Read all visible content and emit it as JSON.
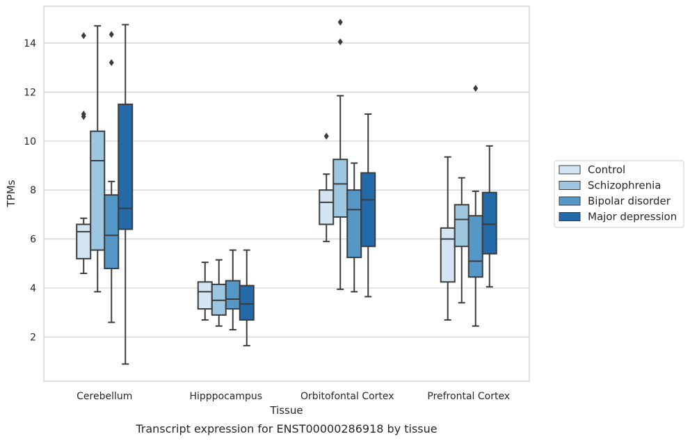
{
  "caption": "Transcript expression for ENST00000286918 by tissue",
  "chart_data": {
    "type": "box",
    "title": "",
    "xlabel": "Tissue",
    "ylabel": "TPMs",
    "ylim": [
      0.2,
      15.5
    ],
    "yticks": [
      2,
      4,
      6,
      8,
      10,
      12,
      14
    ],
    "grid": "horizontal",
    "legend_position": "right",
    "categories": [
      "Cerebellum",
      "Hipppocampus",
      "Orbitofontal Cortex",
      "Prefrontal Cortex"
    ],
    "series": [
      {
        "name": "Control",
        "color": "#d3e4f3",
        "boxes": [
          {
            "whisker_low": 4.6,
            "q1": 5.2,
            "median": 6.3,
            "q3": 6.6,
            "whisker_high": 6.85,
            "outliers": [
              11.0,
              11.1,
              14.3
            ]
          },
          {
            "whisker_low": 2.7,
            "q1": 3.15,
            "median": 3.85,
            "q3": 4.25,
            "whisker_high": 5.05,
            "outliers": []
          },
          {
            "whisker_low": 5.9,
            "q1": 6.6,
            "median": 7.5,
            "q3": 8.0,
            "whisker_high": 8.65,
            "outliers": [
              10.2
            ]
          },
          {
            "whisker_low": 2.7,
            "q1": 4.25,
            "median": 6.0,
            "q3": 6.45,
            "whisker_high": 9.35,
            "outliers": []
          }
        ]
      },
      {
        "name": "Schizophrenia",
        "color": "#9dc7e0",
        "boxes": [
          {
            "whisker_low": 3.85,
            "q1": 5.55,
            "median": 9.2,
            "q3": 10.4,
            "whisker_high": 14.7,
            "outliers": []
          },
          {
            "whisker_low": 2.45,
            "q1": 2.9,
            "median": 3.5,
            "q3": 4.15,
            "whisker_high": 5.15,
            "outliers": []
          },
          {
            "whisker_low": 3.95,
            "q1": 6.9,
            "median": 8.25,
            "q3": 9.25,
            "whisker_high": 11.85,
            "outliers": [
              14.05,
              14.85
            ]
          },
          {
            "whisker_low": 3.4,
            "q1": 5.7,
            "median": 6.8,
            "q3": 7.4,
            "whisker_high": 8.5,
            "outliers": []
          }
        ]
      },
      {
        "name": "Bipolar disorder",
        "color": "#5597c7",
        "boxes": [
          {
            "whisker_low": 2.6,
            "q1": 4.8,
            "median": 6.15,
            "q3": 7.8,
            "whisker_high": 8.35,
            "outliers": [
              13.2,
              14.35
            ]
          },
          {
            "whisker_low": 2.3,
            "q1": 3.15,
            "median": 3.55,
            "q3": 4.3,
            "whisker_high": 5.55,
            "outliers": []
          },
          {
            "whisker_low": 3.85,
            "q1": 5.25,
            "median": 7.2,
            "q3": 8.0,
            "whisker_high": 9.1,
            "outliers": []
          },
          {
            "whisker_low": 2.45,
            "q1": 4.45,
            "median": 5.1,
            "q3": 6.95,
            "whisker_high": 7.95,
            "outliers": [
              12.15
            ]
          }
        ]
      },
      {
        "name": "Major depression",
        "color": "#2469a8",
        "boxes": [
          {
            "whisker_low": 0.9,
            "q1": 6.4,
            "median": 7.25,
            "q3": 11.5,
            "whisker_high": 14.75,
            "outliers": []
          },
          {
            "whisker_low": 1.65,
            "q1": 2.7,
            "median": 3.35,
            "q3": 4.1,
            "whisker_high": 5.55,
            "outliers": []
          },
          {
            "whisker_low": 3.65,
            "q1": 5.7,
            "median": 7.6,
            "q3": 8.7,
            "whisker_high": 11.1,
            "outliers": []
          },
          {
            "whisker_low": 4.05,
            "q1": 5.4,
            "median": 6.6,
            "q3": 7.9,
            "whisker_high": 9.8,
            "outliers": []
          }
        ]
      }
    ]
  }
}
